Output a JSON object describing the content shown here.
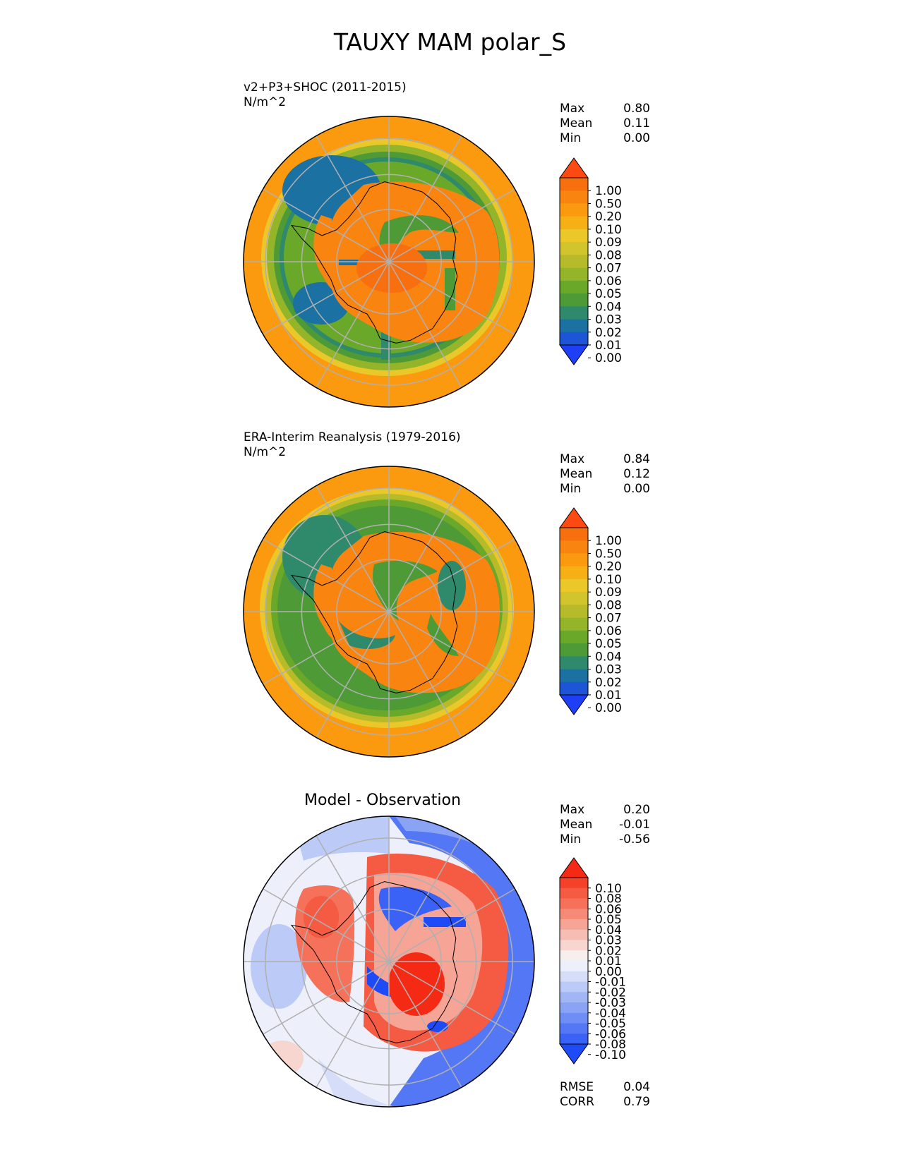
{
  "figure_title": "TAUXY MAM polar_S",
  "colors": {
    "orange": "#fb9a0e",
    "dark_orange": "#f57210",
    "green": "#5aa82a",
    "blue_green": "#2f8a6c",
    "red": "#fb3a1a",
    "blue": "#1f4af7",
    "grid": "#b0b0b0"
  },
  "chart_data": [
    {
      "type": "heatmap",
      "title": "v2+P3+SHOC (2011-2015)",
      "units": "N/m^2",
      "projection": "south polar stereographic",
      "stats": [
        {
          "label": "Max",
          "value": "0.80"
        },
        {
          "label": "Mean",
          "value": "0.11"
        },
        {
          "label": "Min",
          "value": "0.00"
        }
      ],
      "colorbar": {
        "levels": [
          "1.00",
          "0.50",
          "0.20",
          "0.10",
          "0.09",
          "0.08",
          "0.07",
          "0.06",
          "0.05",
          "0.04",
          "0.03",
          "0.02",
          "0.01",
          "0.00"
        ],
        "colors": [
          "#fc4a12",
          "#f86f10",
          "#fa8410",
          "#fb9a0e",
          "#f5b016",
          "#ebc829",
          "#d2c42d",
          "#b7bb2a",
          "#94b42a",
          "#6aa82a",
          "#4d9a36",
          "#2f8a6c",
          "#1a71a2",
          "#1d55d6",
          "#1f3ff7"
        ],
        "extend": "both"
      }
    },
    {
      "type": "heatmap",
      "title": "ERA-Interim Reanalysis (1979-2016)",
      "units": "N/m^2",
      "projection": "south polar stereographic",
      "stats": [
        {
          "label": "Max",
          "value": "0.84"
        },
        {
          "label": "Mean",
          "value": "0.12"
        },
        {
          "label": "Min",
          "value": "0.00"
        }
      ],
      "colorbar": {
        "levels": [
          "1.00",
          "0.50",
          "0.20",
          "0.10",
          "0.09",
          "0.08",
          "0.07",
          "0.06",
          "0.05",
          "0.04",
          "0.03",
          "0.02",
          "0.01",
          "0.00"
        ],
        "colors": [
          "#fc4a12",
          "#f86f10",
          "#fa8410",
          "#fb9a0e",
          "#f5b016",
          "#ebc829",
          "#d2c42d",
          "#b7bb2a",
          "#94b42a",
          "#6aa82a",
          "#4d9a36",
          "#2f8a6c",
          "#1a71a2",
          "#1d55d6",
          "#1f3ff7"
        ],
        "extend": "both"
      }
    },
    {
      "type": "heatmap",
      "title": "Model - Observation",
      "projection": "south polar stereographic",
      "stats": [
        {
          "label": "Max",
          "value": "0.20"
        },
        {
          "label": "Mean",
          "value": "-0.01"
        },
        {
          "label": "Min",
          "value": "-0.56"
        }
      ],
      "metrics": [
        {
          "label": "RMSE",
          "value": "0.04"
        },
        {
          "label": "CORR",
          "value": "0.79"
        }
      ],
      "colorbar": {
        "levels": [
          "0.10",
          "0.08",
          "0.06",
          "0.05",
          "0.04",
          "0.03",
          "0.02",
          "0.01",
          "0.00",
          "-0.01",
          "-0.02",
          "-0.03",
          "-0.04",
          "-0.05",
          "-0.06",
          "-0.08",
          "-0.10"
        ],
        "colors": [
          "#f52a14",
          "#f5402a",
          "#f55a42",
          "#f5715a",
          "#f58a76",
          "#f5a496",
          "#f5bdb3",
          "#f7d6cf",
          "#f7efed",
          "#edf0fb",
          "#d5ddf9",
          "#bccaf7",
          "#a2b6f6",
          "#8aa3f5",
          "#6f8ef5",
          "#5478f5",
          "#3a62f6",
          "#1e4bf7"
        ],
        "extend": "both"
      }
    }
  ]
}
